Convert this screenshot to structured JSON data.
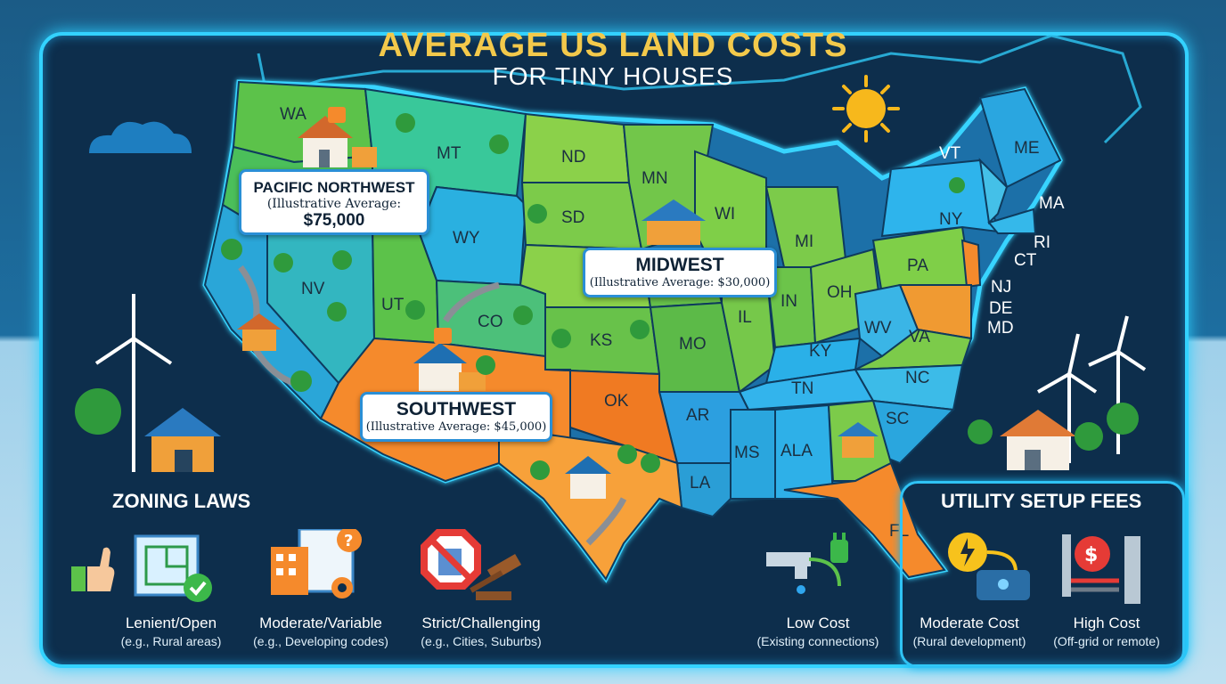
{
  "header": {
    "title": "AVERAGE US LAND COSTS",
    "subtitle": "FOR TINY HOUSES"
  },
  "regions": {
    "pacific_northwest": {
      "name": "PACIFIC NORTHWEST",
      "avg_line1": "(Illustrative Average:",
      "avg_value": "$75,000"
    },
    "midwest": {
      "name": "MIDWEST",
      "avg": "(Illustrative Average: $30,000)"
    },
    "southwest": {
      "name": "SOUTHWEST",
      "avg": "(Illustrative Average: $45,000)"
    }
  },
  "states": [
    "WA",
    "MT",
    "ND",
    "MN",
    "SD",
    "WY",
    "NV",
    "UT",
    "CO",
    "KS",
    "MO",
    "IL",
    "IN",
    "OH",
    "WI",
    "MI",
    "PA",
    "NY",
    "VT",
    "ME",
    "MA",
    "RI",
    "CT",
    "NJ",
    "DE",
    "MD",
    "WV",
    "VA",
    "KY",
    "TN",
    "NC",
    "SC",
    "OK",
    "AR",
    "LA",
    "MS",
    "ALA",
    "FL"
  ],
  "zoning": {
    "title": "ZONING LAWS",
    "items": [
      {
        "label": "Lenient/Open",
        "sub": "(e.g., Rural areas)",
        "icon": "thumbs-up-blueprint-icon"
      },
      {
        "label": "Moderate/Variable",
        "sub": "(e.g., Developing codes)",
        "icon": "building-gears-icon"
      },
      {
        "label": "Strict/Challenging",
        "sub": "(e.g., Cities, Suburbs)",
        "icon": "no-building-gavel-icon"
      }
    ]
  },
  "utility": {
    "title": "UTILITY SETUP FEES",
    "items": [
      {
        "label": "Low Cost",
        "sub": "(Existing connections)",
        "icon": "faucet-plug-icon"
      },
      {
        "label": "Moderate Cost",
        "sub": "(Rural development)",
        "icon": "power-water-tank-icon"
      },
      {
        "label": "High Cost",
        "sub": "(Off-grid or remote)",
        "icon": "dollar-pipes-icon"
      }
    ]
  },
  "colors": {
    "frame_glow": "#33d2ff",
    "title_gold": "#f3c94b",
    "northwest_green": "#5cc24a",
    "midwest_green": "#8bd14a",
    "southwest_orange": "#f58a2c",
    "southeast_blue": "#2eb4ec"
  }
}
